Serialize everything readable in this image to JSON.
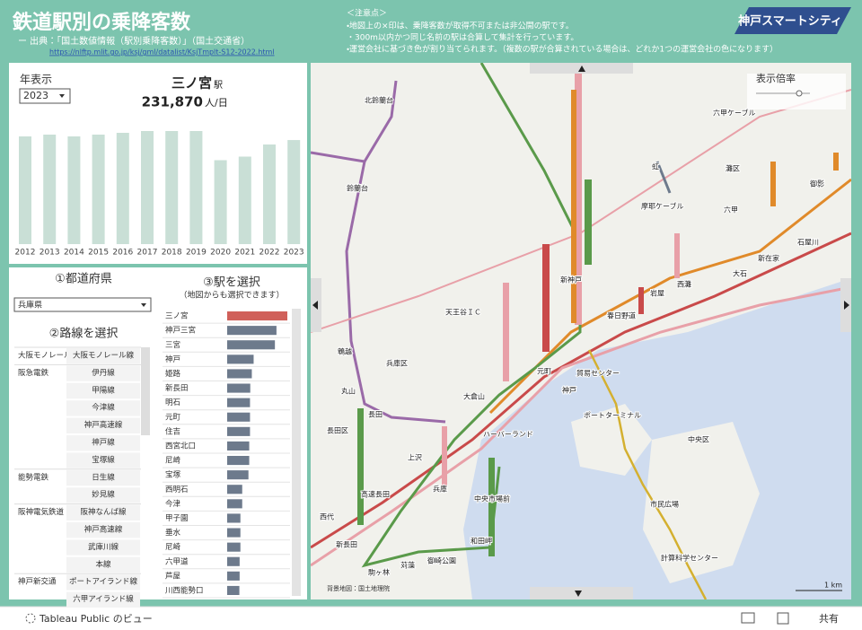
{
  "header": {
    "title": "鉄道駅別の乗降客数",
    "source": "ー 出典：「国土数値情報（駅別乗降客数）」（国土交通省）",
    "url": "https://nlftp.mlit.go.jp/ksj/gml/datalist/KsjTmplt-S12-2022.html",
    "notes_title": "＜注意点＞",
    "notes": [
      "・地図上の×印は、乗降客数が取得不可または非公開の駅です。",
      "・300m以内かつ同じ名前の駅は合算して集計を行っています。",
      "・運営会社に基づき色が割り当てられます。（複数の駅が合算されている場合は、どれか1つの運営会社の色になります）"
    ],
    "logo": "神戸スマートシティ"
  },
  "year_panel": {
    "label": "年表示",
    "selected_year": "2023",
    "station": "三ノ宮",
    "station_suffix": "駅",
    "value_label": "231,870",
    "unit": "人/日"
  },
  "chart_data": {
    "type": "bar",
    "categories": [
      "2012",
      "2013",
      "2014",
      "2015",
      "2016",
      "2017",
      "2018",
      "2019",
      "2020",
      "2021",
      "2022",
      "2023"
    ],
    "values": [
      240000,
      244000,
      240000,
      244000,
      248000,
      252000,
      252000,
      252000,
      187000,
      195000,
      222000,
      231870
    ],
    "color": "#c9dfd6"
  },
  "filters": {
    "prefecture_title": "①都道府県",
    "prefecture": "兵庫県",
    "line_title": "②路線を選択",
    "companies": [
      {
        "company": "大阪モノレール",
        "lines": [
          "大阪モノレール線"
        ]
      },
      {
        "company": "阪急電鉄",
        "lines": [
          "伊丹線",
          "甲陽線",
          "今津線",
          "神戸高速線",
          "神戸線",
          "宝塚線"
        ]
      },
      {
        "company": "能勢電鉄",
        "lines": [
          "日生線",
          "妙見線"
        ]
      },
      {
        "company": "阪神電気鉄道",
        "lines": [
          "阪神なんば線",
          "神戸高速線",
          "武庫川線",
          "本線"
        ]
      },
      {
        "company": "神戸新交通",
        "lines": [
          "ポートアイランド線",
          "六甲アイランド線"
        ]
      }
    ]
  },
  "station_list": {
    "title": "③駅を選択",
    "subtitle": "（地図からも選択できます）",
    "type": "hbar",
    "categories": [
      "三ノ宮",
      "神戸三宮",
      "三宮",
      "神戸",
      "姫路",
      "新長田",
      "明石",
      "元町",
      "住吉",
      "西宮北口",
      "尼崎",
      "宝塚",
      "西明石",
      "今津",
      "甲子園",
      "垂水",
      "尼崎",
      "六甲道",
      "芦屋",
      "川西能勢口"
    ],
    "values": [
      231870,
      190000,
      184000,
      102000,
      95000,
      89000,
      88000,
      88000,
      88000,
      85000,
      85000,
      82000,
      58000,
      58000,
      51000,
      51000,
      51000,
      48000,
      48000,
      47000
    ],
    "color": "#6d7a8c",
    "selected_color": "#d0605a"
  },
  "map": {
    "zoom_label": "表示倍率",
    "credit": "背景地図：国土地理院",
    "scale": "1 km",
    "labels": [
      "北鈴蘭台",
      "鈴蘭台",
      "鵯越",
      "丸山",
      "長田",
      "兵庫区",
      "長田区",
      "新長田",
      "西代",
      "高速長田",
      "駒ヶ林",
      "苅藻",
      "御崎公園",
      "和田岬",
      "中央市場前",
      "ハーバーランド",
      "兵庫",
      "上沢",
      "大倉山",
      "元町",
      "神戸",
      "新神戸",
      "春日野道",
      "貿易センター",
      "ポートターミナル",
      "岩屋",
      "西灘",
      "大石",
      "新在家",
      "石屋川",
      "六甲",
      "御影",
      "摩耶ケーブル",
      "虹",
      "六甲ケーブル",
      "市民広場",
      "計算科学センター",
      "中央区",
      "天王谷ＩＣ",
      "灘区"
    ]
  },
  "toolbar": {
    "brand": "Tableau Public のビュー",
    "share": "共有"
  }
}
